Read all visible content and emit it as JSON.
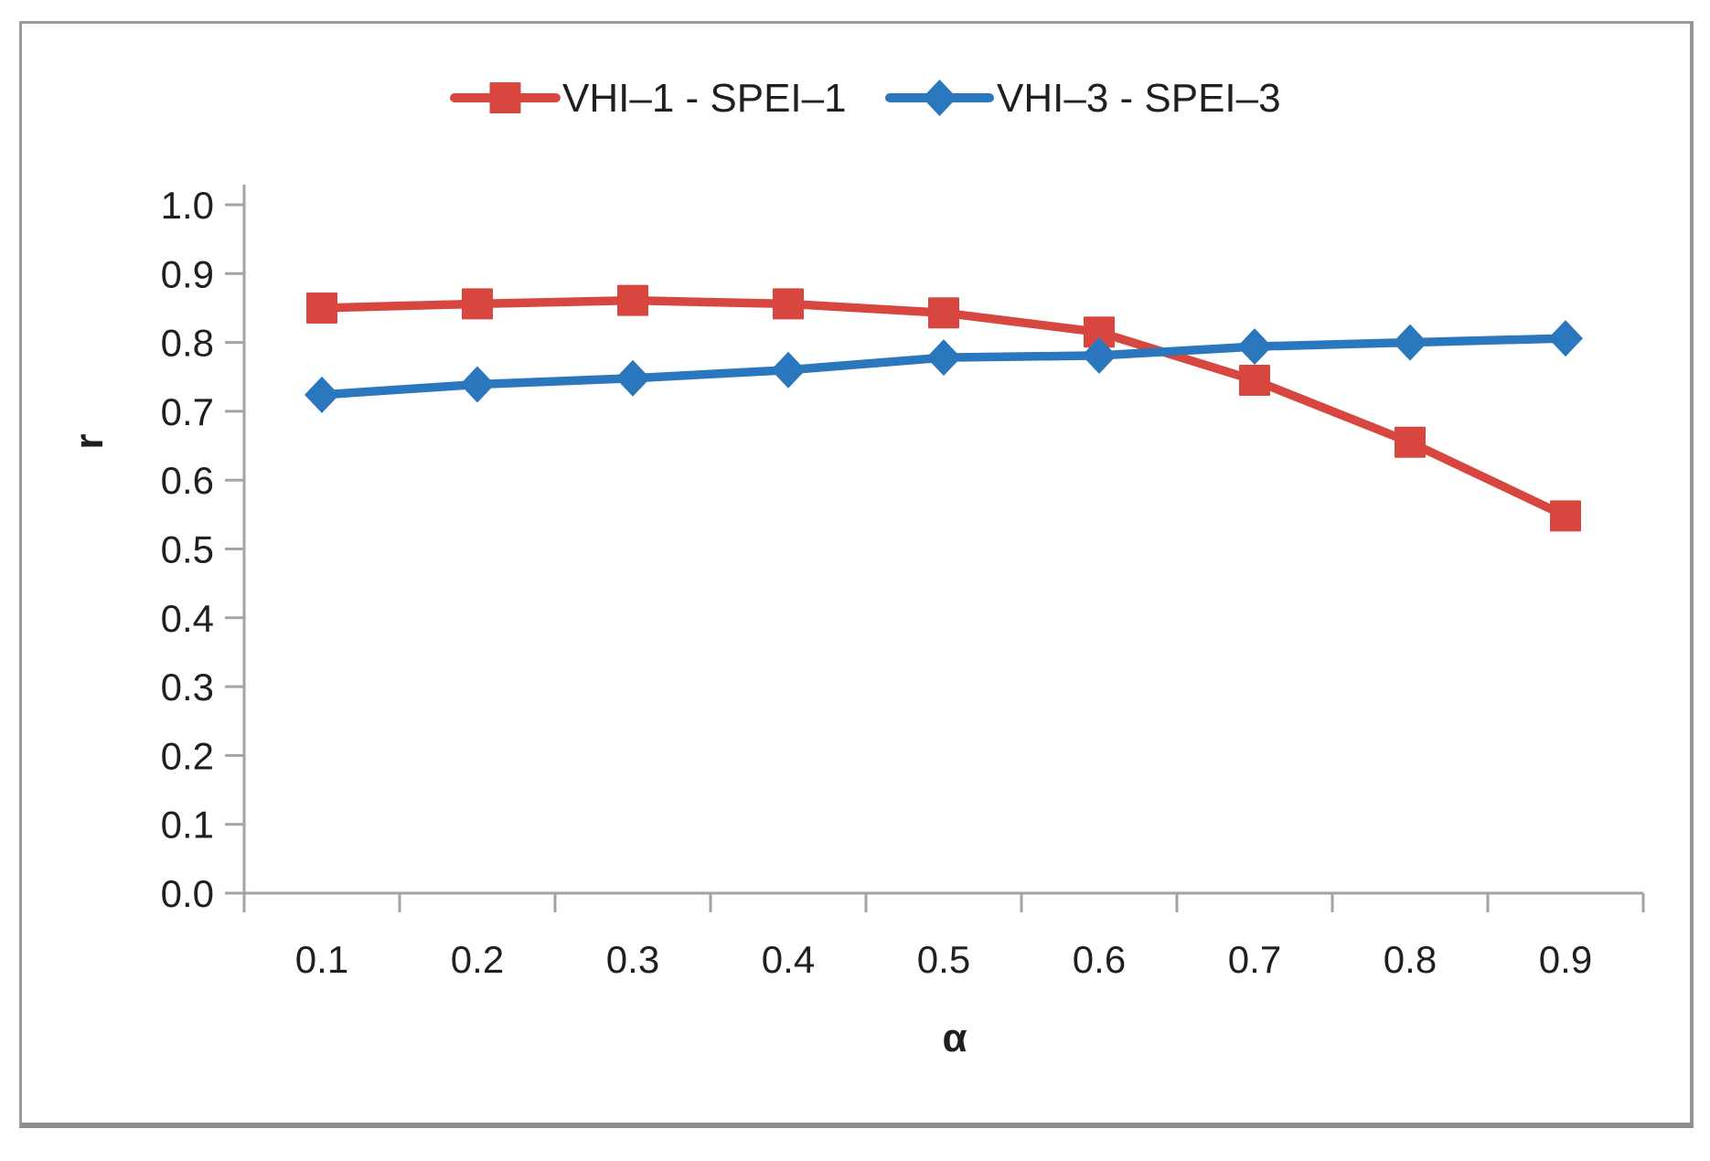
{
  "chart_data": {
    "type": "line",
    "title": "",
    "xlabel": "α",
    "ylabel": "r",
    "x": [
      0.1,
      0.2,
      0.3,
      0.4,
      0.5,
      0.6,
      0.7,
      0.8,
      0.9
    ],
    "xtick_labels": [
      "0.1",
      "0.2",
      "0.3",
      "0.4",
      "0.5",
      "0.6",
      "0.7",
      "0.8",
      "0.9"
    ],
    "ytick_labels": [
      "1.0",
      "0.9",
      "0.8",
      "0.7",
      "0.6",
      "0.5",
      "0.4",
      "0.3",
      "0.2",
      "0.1",
      "0.0"
    ],
    "ylim": [
      0.0,
      1.0
    ],
    "ytick_step": 0.1,
    "grid": false,
    "legend_position": "top-center",
    "series": [
      {
        "name": "VHI–1 - SPEI–1",
        "marker": "square",
        "color": "#d8473f",
        "values": [
          0.85,
          0.856,
          0.861,
          0.856,
          0.843,
          0.815,
          0.745,
          0.655,
          0.548
        ]
      },
      {
        "name": "VHI–3 - SPEI–3",
        "marker": "diamond",
        "color": "#2b77bd",
        "values": [
          0.724,
          0.739,
          0.748,
          0.76,
          0.778,
          0.781,
          0.794,
          0.8,
          0.806
        ]
      }
    ],
    "colors": {
      "axis": "#a3a3a3",
      "tick": "#a3a3a3",
      "text": "#1f1f1f",
      "frame_border": "#9c9c9c",
      "background": "#ffffff"
    }
  }
}
